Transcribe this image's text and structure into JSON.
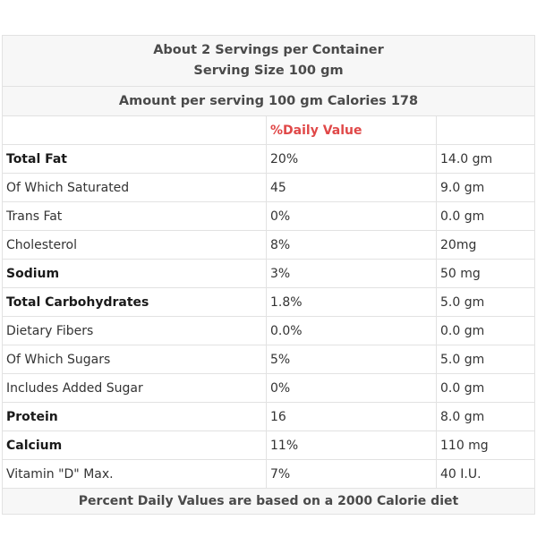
{
  "header": {
    "servings": "About 2 Servings per Container",
    "serving_size": "Serving Size 100 gm",
    "amount_line": "Amount per serving 100 gm Calories 178"
  },
  "columns": {
    "daily_value": "%Daily Value"
  },
  "rows": [
    {
      "name": "Total Fat",
      "dv": "20%",
      "amount": "14.0 gm",
      "bold": true
    },
    {
      "name": "Of Which Saturated",
      "dv": "45",
      "amount": "9.0 gm",
      "bold": false
    },
    {
      "name": "Trans Fat",
      "dv": "0%",
      "amount": "0.0 gm",
      "bold": false
    },
    {
      "name": "Cholesterol",
      "dv": "8%",
      "amount": "20mg",
      "bold": false
    },
    {
      "name": "Sodium",
      "dv": "3%",
      "amount": "50 mg",
      "bold": true
    },
    {
      "name": "Total Carbohydrates",
      "dv": "1.8%",
      "amount": "5.0 gm",
      "bold": true
    },
    {
      "name": "Dietary Fibers",
      "dv": "0.0%",
      "amount": "0.0 gm",
      "bold": false
    },
    {
      "name": "Of Which Sugars",
      "dv": "5%",
      "amount": "5.0 gm",
      "bold": false
    },
    {
      "name": "Includes Added Sugar",
      "dv": "0%",
      "amount": "0.0 gm",
      "bold": false
    },
    {
      "name": "Protein",
      "dv": "16",
      "amount": "8.0 gm",
      "bold": true
    },
    {
      "name": "Calcium",
      "dv": "11%",
      "amount": "110 mg",
      "bold": true
    },
    {
      "name": "Vitamin \"D\" Max.",
      "dv": "7%",
      "amount": "40 I.U.",
      "bold": false
    }
  ],
  "footer": "Percent Daily Values are based on a 2000 Calorie diet"
}
